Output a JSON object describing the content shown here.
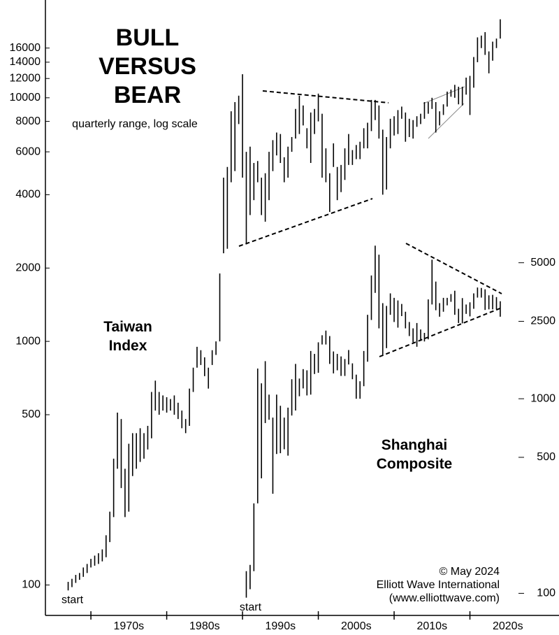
{
  "chart_data": {
    "type": "range",
    "title": [
      "BULL",
      "VERSUS",
      "BEAR"
    ],
    "subtitle": "quarterly range, log scale",
    "log_scale": true,
    "xlim": [
      1964.0,
      2031.75
    ],
    "xticks": [
      1970,
      1980,
      1990,
      2000,
      2010,
      2020
    ],
    "xtick_labels": [
      {
        "value": 1975,
        "label": "1970s"
      },
      {
        "value": 1985,
        "label": "1980s"
      },
      {
        "value": 1995,
        "label": "1990s"
      },
      {
        "value": 2005,
        "label": "2000s"
      },
      {
        "value": 2015,
        "label": "2010s"
      },
      {
        "value": 2025,
        "label": "2020s"
      }
    ],
    "ylim": [
      75,
      25200
    ],
    "yticks": [
      100,
      500,
      1000,
      2000,
      4000,
      6000,
      8000,
      10000,
      12000,
      14000,
      16000
    ],
    "y2lim": [
      77,
      112000
    ],
    "y2ticks": [
      100,
      500,
      1000,
      2500,
      5000
    ],
    "series": [
      {
        "name": "Taiwan Index",
        "color": "#000000",
        "axis": "y",
        "start_label": "start",
        "x": [
          1967.0,
          1967.5,
          1968.0,
          1968.5,
          1969.0,
          1969.5,
          1970.0,
          1970.5,
          1971.0,
          1971.5,
          1972.0,
          1972.5,
          1973.0,
          1973.5,
          1974.0,
          1974.5,
          1975.0,
          1975.5,
          1976.0,
          1976.5,
          1977.0,
          1977.5,
          1978.0,
          1978.5,
          1979.0,
          1979.5,
          1980.0,
          1980.5,
          1981.0,
          1981.5,
          1982.0,
          1982.5,
          1983.0,
          1983.5,
          1984.0,
          1984.5,
          1985.0,
          1985.5,
          1986.0,
          1986.5,
          1987.0,
          1987.5,
          1988.0,
          1988.5,
          1989.0,
          1989.5,
          1990.0,
          1990.5,
          1991.0,
          1991.5,
          1992.0,
          1992.5,
          1993.0,
          1993.5,
          1994.0,
          1994.5,
          1995.0,
          1995.5,
          1996.0,
          1996.5,
          1997.0,
          1997.5,
          1998.0,
          1998.5,
          1999.0,
          1999.5,
          2000.0,
          2000.5,
          2001.0,
          2001.5,
          2002.0,
          2002.5,
          2003.0,
          2003.5,
          2004.0,
          2004.5,
          2005.0,
          2005.5,
          2006.0,
          2006.5,
          2007.0,
          2007.5,
          2008.0,
          2008.5,
          2009.0,
          2009.5,
          2010.0,
          2010.5,
          2011.0,
          2011.5,
          2012.0,
          2012.5,
          2013.0,
          2013.5,
          2014.0,
          2014.5,
          2015.0,
          2015.5,
          2016.0,
          2016.5,
          2017.0,
          2017.5,
          2018.0,
          2018.5,
          2019.0,
          2019.5,
          2020.0,
          2020.5,
          2021.0,
          2021.5,
          2022.0,
          2022.5,
          2023.0,
          2023.5,
          2024.0
        ],
        "low": [
          95,
          98,
          102,
          105,
          108,
          112,
          118,
          120,
          122,
          125,
          130,
          150,
          190,
          300,
          250,
          190,
          200,
          280,
          300,
          320,
          330,
          360,
          400,
          520,
          500,
          520,
          510,
          520,
          500,
          480,
          440,
          420,
          450,
          620,
          780,
          800,
          720,
          640,
          800,
          880,
          1000,
          2300,
          2400,
          4500,
          5000,
          7800,
          4700,
          2500,
          3300,
          3800,
          4500,
          3300,
          3100,
          3800,
          5000,
          5800,
          5400,
          4500,
          4700,
          6000,
          6800,
          7100,
          7700,
          6200,
          5400,
          7100,
          8000,
          4700,
          4500,
          3400,
          5200,
          3800,
          4100,
          4600,
          5300,
          5300,
          5600,
          5600,
          6200,
          6200,
          7300,
          8100,
          6800,
          4000,
          4200,
          6200,
          7000,
          7100,
          8200,
          6600,
          6900,
          6800,
          7600,
          7800,
          8200,
          8600,
          9000,
          7200,
          7700,
          8500,
          9200,
          10100,
          10000,
          9400,
          9300,
          10300,
          8500,
          11000,
          14000,
          16000,
          15000,
          12600,
          14200,
          16000,
          17500
        ],
        "high": [
          103,
          106,
          110,
          112,
          118,
          122,
          128,
          132,
          135,
          140,
          160,
          200,
          330,
          510,
          480,
          300,
          380,
          420,
          420,
          440,
          420,
          450,
          620,
          690,
          620,
          600,
          590,
          580,
          600,
          560,
          520,
          480,
          640,
          780,
          950,
          920,
          860,
          780,
          920,
          1000,
          1900,
          4700,
          5200,
          8800,
          9600,
          10200,
          12500,
          6000,
          6300,
          5400,
          5500,
          4700,
          4900,
          6000,
          6700,
          7200,
          7100,
          5700,
          6300,
          6900,
          9000,
          10200,
          9300,
          7500,
          8700,
          9000,
          10400,
          8600,
          6200,
          4900,
          6500,
          5200,
          5300,
          6200,
          7100,
          6100,
          6400,
          6600,
          7500,
          7900,
          9800,
          9800,
          9300,
          7400,
          6900,
          8200,
          8400,
          8900,
          9200,
          8700,
          8200,
          8100,
          8400,
          8600,
          9600,
          9600,
          10000,
          9600,
          8800,
          9400,
          10600,
          10800,
          11300,
          11100,
          11100,
          12100,
          12300,
          14700,
          17700,
          18000,
          18600,
          15500,
          17000,
          17500,
          21000
        ]
      },
      {
        "name": "Shanghai Composite",
        "color": "#000000",
        "axis": "y2",
        "start_label": "start",
        "x": [
          1990.5,
          1991.0,
          1991.5,
          1992.0,
          1992.5,
          1993.0,
          1993.5,
          1994.0,
          1994.5,
          1995.0,
          1995.5,
          1996.0,
          1996.5,
          1997.0,
          1997.5,
          1998.0,
          1998.5,
          1999.0,
          1999.5,
          2000.0,
          2000.5,
          2001.0,
          2001.5,
          2002.0,
          2002.5,
          2003.0,
          2003.5,
          2004.0,
          2004.5,
          2005.0,
          2005.5,
          2006.0,
          2006.5,
          2007.0,
          2007.5,
          2008.0,
          2008.5,
          2009.0,
          2009.5,
          2010.0,
          2010.5,
          2011.0,
          2011.5,
          2012.0,
          2012.5,
          2013.0,
          2013.5,
          2014.0,
          2014.5,
          2015.0,
          2015.5,
          2016.0,
          2016.5,
          2017.0,
          2017.5,
          2018.0,
          2018.5,
          2019.0,
          2019.5,
          2020.0,
          2020.5,
          2021.0,
          2021.5,
          2022.0,
          2022.5,
          2023.0,
          2023.5,
          2024.0
        ],
        "low": [
          95,
          105,
          130,
          290,
          390,
          750,
          780,
          325,
          520,
          525,
          550,
          510,
          820,
          870,
          1030,
          1130,
          1040,
          1050,
          1340,
          1360,
          1900,
          1900,
          1510,
          1350,
          1400,
          1310,
          1310,
          1500,
          1260,
          1000,
          1000,
          1160,
          1550,
          2540,
          3500,
          2300,
          1660,
          1820,
          2700,
          2480,
          2320,
          2660,
          2300,
          2100,
          1950,
          1850,
          1980,
          1970,
          2020,
          3050,
          2850,
          2640,
          2800,
          3020,
          3150,
          2700,
          2450,
          2440,
          2730,
          2650,
          2900,
          3310,
          3310,
          2860,
          2880,
          2880,
          2880,
          2640
        ],
        "high": [
          130,
          140,
          290,
          1430,
          1200,
          1560,
          1050,
          800,
          1050,
          920,
          800,
          900,
          1260,
          1510,
          1270,
          1420,
          1400,
          1760,
          1700,
          1950,
          2120,
          2240,
          2100,
          1750,
          1700,
          1650,
          1600,
          1780,
          1520,
          1330,
          1230,
          1760,
          2700,
          4300,
          6120,
          5500,
          3100,
          3000,
          3480,
          3300,
          3200,
          3070,
          2800,
          2480,
          2300,
          2450,
          2270,
          2180,
          3240,
          5180,
          4000,
          3100,
          3300,
          3300,
          3450,
          3590,
          2900,
          3290,
          3050,
          3130,
          3480,
          3730,
          3710,
          3650,
          3400,
          3420,
          3330,
          3170
        ]
      }
    ],
    "credits": [
      "© May 2024",
      "Elliott Wave International",
      "(www.elliottwave.com)"
    ]
  }
}
